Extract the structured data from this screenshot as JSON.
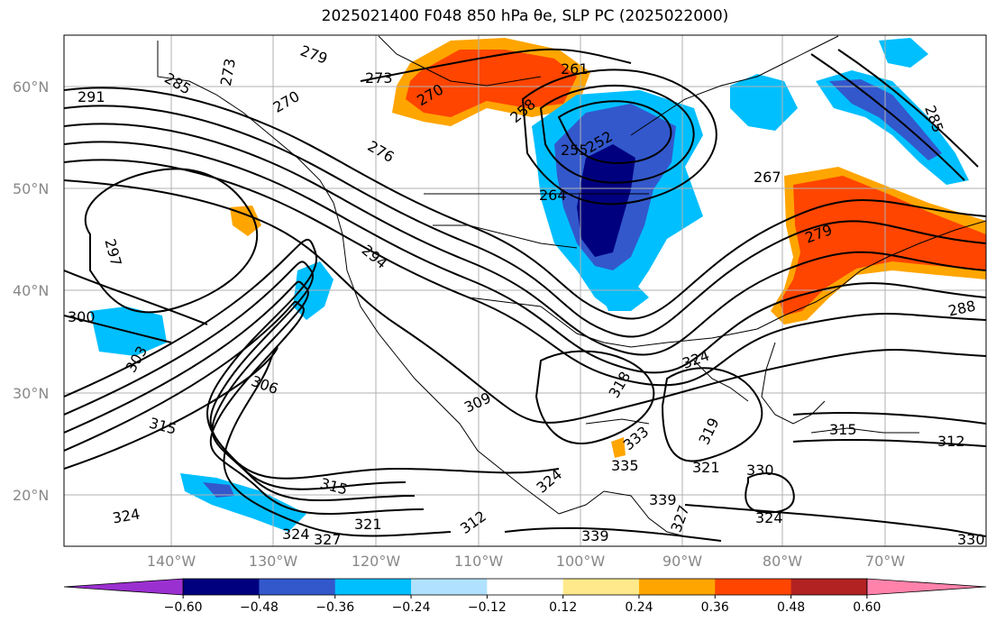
{
  "title": "2025021400 F048 850 hPa θe, SLP PC (2025022000)",
  "lat_labels": [
    "60°N",
    "50°N",
    "40°N",
    "30°N",
    "20°N"
  ],
  "lon_labels": [
    "140°W",
    "130°W",
    "120°W",
    "110°W",
    "100°W",
    "90°W",
    "80°W",
    "70°W"
  ],
  "colorbar": {
    "ticks": [
      "−0.60",
      "−0.48",
      "−0.36",
      "−0.24",
      "−0.12",
      "0.12",
      "0.24",
      "0.36",
      "0.48",
      "0.60"
    ],
    "colors": [
      "#9b30d0",
      "#00007f",
      "#3358cc",
      "#00bfff",
      "#b0e2ff",
      "#ffffff",
      "#ffe98a",
      "#ffa500",
      "#ff4500",
      "#b22222",
      "#ff82ab"
    ]
  },
  "contour_labels": [
    {
      "text": "291"
    },
    {
      "text": "273"
    },
    {
      "text": "279"
    },
    {
      "text": "285"
    },
    {
      "text": "270"
    },
    {
      "text": "273"
    },
    {
      "text": "261"
    },
    {
      "text": "270"
    },
    {
      "text": "258"
    },
    {
      "text": "252"
    },
    {
      "text": "255"
    },
    {
      "text": "276"
    },
    {
      "text": "264"
    },
    {
      "text": "267"
    },
    {
      "text": "285"
    },
    {
      "text": "297"
    },
    {
      "text": "294"
    },
    {
      "text": "279"
    },
    {
      "text": "300"
    },
    {
      "text": "303"
    },
    {
      "text": "306"
    },
    {
      "text": "288"
    },
    {
      "text": "324"
    },
    {
      "text": "309"
    },
    {
      "text": "318"
    },
    {
      "text": "315"
    },
    {
      "text": "333"
    },
    {
      "text": "319"
    },
    {
      "text": "315"
    },
    {
      "text": "312"
    },
    {
      "text": "335"
    },
    {
      "text": "321"
    },
    {
      "text": "324"
    },
    {
      "text": "330"
    },
    {
      "text": "315"
    },
    {
      "text": "339"
    },
    {
      "text": "327"
    },
    {
      "text": "324"
    },
    {
      "text": "321"
    },
    {
      "text": "312"
    },
    {
      "text": "339"
    },
    {
      "text": "324"
    },
    {
      "text": "327"
    },
    {
      "text": "330"
    },
    {
      "text": "324"
    }
  ]
}
